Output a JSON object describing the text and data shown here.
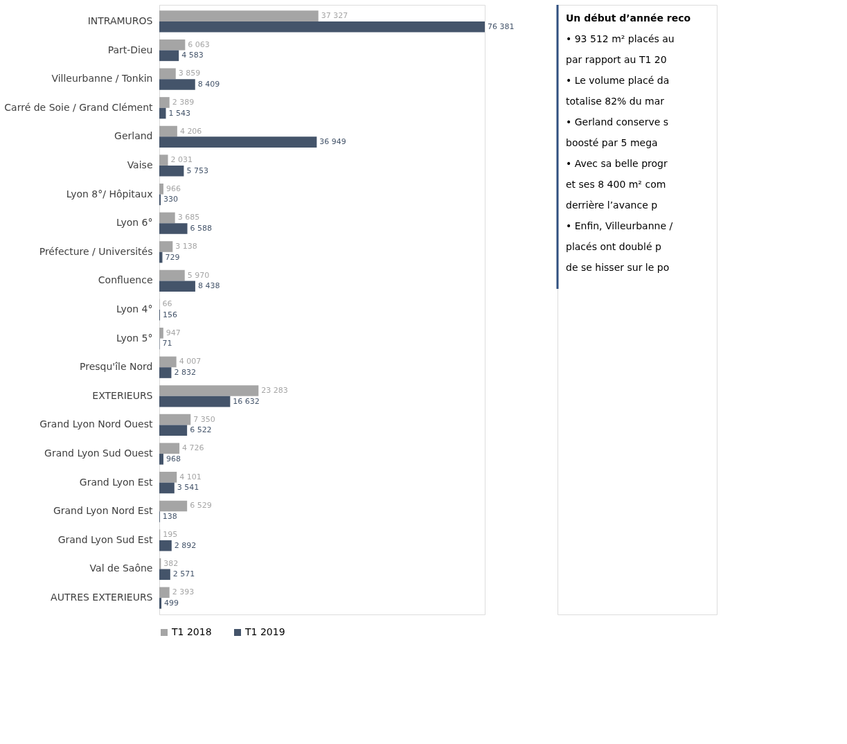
{
  "chart_data": {
    "type": "bar",
    "orientation": "horizontal",
    "categories": [
      "INTRAMUROS",
      "Part-Dieu",
      "Villeurbanne / Tonkin",
      "Carré de Soie / Grand Clément",
      "Gerland",
      "Vaise",
      "Lyon 8°/ Hôpitaux",
      "Lyon 6°",
      "Préfecture / Universités",
      "Confluence",
      "Lyon 4°",
      "Lyon 5°",
      "Presqu'île Nord",
      "EXTERIEURS",
      "Grand Lyon Nord Ouest",
      "Grand Lyon Sud Ouest",
      "Grand Lyon Est",
      "Grand Lyon Nord Est",
      "Grand Lyon Sud Est",
      "Val de Saône",
      "AUTRES EXTERIEURS"
    ],
    "series": [
      {
        "name": "T1 2018",
        "color": "#a5a5a5",
        "values": [
          37327,
          6063,
          3859,
          2389,
          4206,
          2031,
          966,
          3685,
          3138,
          5970,
          66,
          947,
          4007,
          23283,
          7350,
          4726,
          4101,
          6529,
          195,
          382,
          2393
        ],
        "value_labels": [
          "37 327",
          "6 063",
          "3 859",
          "2 389",
          "4 206",
          "2 031",
          "966",
          "3 685",
          "3 138",
          "5 970",
          "66",
          "947",
          "4 007",
          "23 283",
          "7 350",
          "4 726",
          "4 101",
          "6 529",
          "195",
          "382",
          "2 393"
        ]
      },
      {
        "name": "T1 2019",
        "color": "#44546a",
        "values": [
          76381,
          4583,
          8409,
          1543,
          36949,
          5753,
          330,
          6588,
          729,
          8438,
          156,
          71,
          2832,
          16632,
          6522,
          968,
          3541,
          138,
          2892,
          2571,
          499
        ],
        "value_labels": [
          "76 381",
          "4 583",
          "8 409",
          "1 543",
          "36 949",
          "5 753",
          "330",
          "6 588",
          "729",
          "8 438",
          "156",
          "71",
          "2 832",
          "16 632",
          "6 522",
          "968",
          "3 541",
          "138",
          "2 892",
          "2 571",
          "499"
        ]
      }
    ],
    "legend": "bottom",
    "annotations": [
      "Un début d’année reco",
      "•   93 512 m² placés au",
      "    par rapport au T1 20",
      "•   Le volume placé da",
      "    totalise 82% du mar",
      "•   Gerland conserve s",
      "    boosté par 5 mega",
      "•   Avec sa belle progr",
      "    et ses 8 400 m² com",
      "    derrière l’avance p",
      "•   Enfin, Villeurbanne /",
      "    placés ont doublé p",
      "    de se hisser sur le po"
    ]
  }
}
